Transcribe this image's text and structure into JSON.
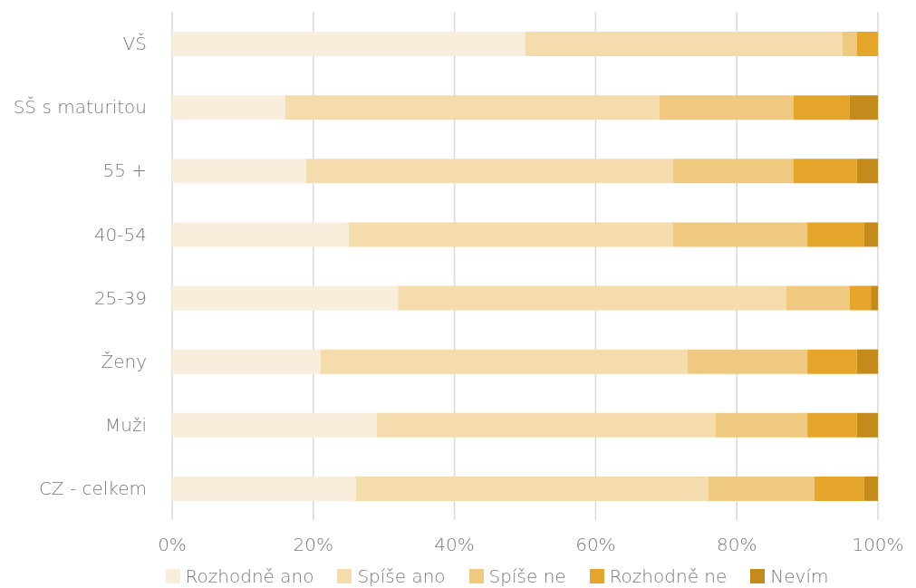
{
  "chart_data": {
    "type": "bar",
    "orientation": "horizontal",
    "stacked": true,
    "categories": [
      "VŠ",
      "SŠ s maturitou",
      "55 +",
      "40-54",
      "25-39",
      "Ženy",
      "Muži",
      "CZ - celkem"
    ],
    "series": [
      {
        "name": "Rozhodně ano",
        "color": "#f9eedb",
        "values": [
          50,
          16,
          19,
          25,
          32,
          21,
          29,
          26
        ]
      },
      {
        "name": "Spíše ano",
        "color": "#f5dcad",
        "values": [
          45,
          53,
          52,
          46,
          55,
          52,
          48,
          50
        ]
      },
      {
        "name": "Spíše ne",
        "color": "#f0c980",
        "values": [
          2,
          19,
          17,
          19,
          9,
          17,
          13,
          15
        ]
      },
      {
        "name": "Rozhodně ne",
        "color": "#e5a42a",
        "values": [
          3,
          8,
          9,
          8,
          3,
          7,
          7,
          7
        ]
      },
      {
        "name": "Nevím",
        "color": "#c48a1b",
        "values": [
          0,
          4,
          3,
          2,
          1,
          3,
          3,
          2
        ]
      }
    ],
    "xlim": [
      0,
      100
    ],
    "xticks": [
      {
        "value": 0,
        "label": "0%"
      },
      {
        "value": 20,
        "label": "20%"
      },
      {
        "value": 40,
        "label": "40%"
      },
      {
        "value": 60,
        "label": "60%"
      },
      {
        "value": 80,
        "label": "80%"
      },
      {
        "value": 100,
        "label": "100%"
      }
    ],
    "grid": "x",
    "legend": "bottom"
  }
}
